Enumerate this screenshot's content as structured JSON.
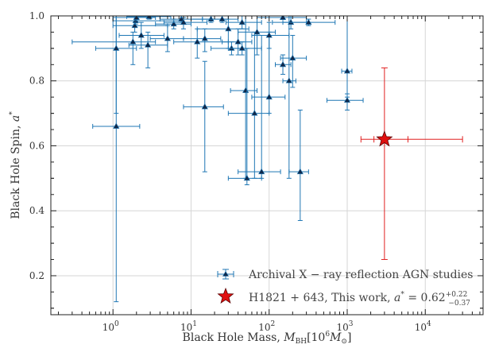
{
  "chart_data": {
    "type": "scatter",
    "xscale": "log",
    "xlim": [
      0.16,
      55000
    ],
    "ylim": [
      0.08,
      1.0
    ],
    "grid": true,
    "xlabel": "Black Hole Mass,  M_BH[10^6 M_⊙]",
    "xlabel_parts": {
      "prefix": "Black Hole Mass,  ",
      "M": "M",
      "sub": "BH",
      "bracket_open": "[10",
      "exp": "6",
      "M2": "M",
      "sub2": "⊙",
      "bracket_close": "]"
    },
    "ylabel": "Black Hole Spin,  a*",
    "ylabel_parts": {
      "prefix": "Black Hole Spin,  ",
      "var": "a",
      "sup": "*"
    },
    "xticks": [
      {
        "value": 1,
        "base": "10",
        "exp": "0"
      },
      {
        "value": 10,
        "base": "10",
        "exp": "1"
      },
      {
        "value": 100,
        "base": "10",
        "exp": "2"
      },
      {
        "value": 1000,
        "base": "10",
        "exp": "3"
      },
      {
        "value": 10000,
        "base": "10",
        "exp": "4"
      }
    ],
    "yticks": [
      "0.2",
      "0.4",
      "0.6",
      "0.8",
      "1.0"
    ],
    "legend": {
      "placement": "bottom-right",
      "entries": [
        {
          "label": "Archival X − ray reflection AGN studies"
        },
        {
          "label_main": "H1821 + 643, This work,  ",
          "var": "a",
          "sup": "*",
          "eq": " = 0.62",
          "up": "+0.22",
          "down": "−0.37"
        }
      ]
    },
    "series": [
      {
        "name": "Archival X-ray reflection AGN studies",
        "color": "#1f77b4",
        "marker_color": "#10284a",
        "points": [
          {
            "x": 1.1,
            "y": 0.66,
            "xlo": 0.55,
            "xhi": 2.2,
            "ylo": 0.12,
            "yhi": 1.0
          },
          {
            "x": 1.1,
            "y": 0.9,
            "xlo": 0.6,
            "xhi": 2.0,
            "ylo": 0.7,
            "yhi": 1.0
          },
          {
            "x": 1.8,
            "y": 0.92,
            "xlo": 0.3,
            "xhi": 3.5,
            "ylo": 0.85,
            "yhi": 0.95
          },
          {
            "x": 1.9,
            "y": 0.97,
            "xlo": 1.0,
            "xhi": 5.0,
            "ylo": 0.95,
            "yhi": 1.0
          },
          {
            "x": 1.95,
            "y": 0.985,
            "xlo": 1.0,
            "xhi": 8.0,
            "ylo": 0.975,
            "yhi": 0.995
          },
          {
            "x": 2.0,
            "y": 0.995,
            "xlo": 1.0,
            "xhi": 3.5,
            "ylo": 0.985,
            "yhi": 1.0
          },
          {
            "x": 2.3,
            "y": 0.94,
            "xlo": 1.2,
            "xhi": 4.5,
            "ylo": 0.9,
            "yhi": 0.98
          },
          {
            "x": 2.8,
            "y": 0.91,
            "xlo": 1.6,
            "xhi": 5.0,
            "ylo": 0.84,
            "yhi": 0.95
          },
          {
            "x": 2.9,
            "y": 0.998,
            "xlo": 1.5,
            "xhi": 5.5,
            "ylo": 0.99,
            "yhi": 1.0
          },
          {
            "x": 5.0,
            "y": 0.93,
            "xlo": 3.0,
            "xhi": 8.0,
            "ylo": 0.89,
            "yhi": 0.97
          },
          {
            "x": 6.0,
            "y": 0.975,
            "xlo": 3.5,
            "xhi": 10.0,
            "ylo": 0.96,
            "yhi": 0.99
          },
          {
            "x": 7.5,
            "y": 0.99,
            "xlo": 4.0,
            "xhi": 14.0,
            "ylo": 0.98,
            "yhi": 1.0
          },
          {
            "x": 8.0,
            "y": 0.98,
            "xlo": 4.5,
            "xhi": 16.0,
            "ylo": 0.96,
            "yhi": 0.995
          },
          {
            "x": 12.0,
            "y": 0.92,
            "xlo": 6.0,
            "xhi": 30.0,
            "ylo": 0.87,
            "yhi": 0.96
          },
          {
            "x": 15.0,
            "y": 0.72,
            "xlo": 8.0,
            "xhi": 26.0,
            "ylo": 0.52,
            "yhi": 0.86
          },
          {
            "x": 15.0,
            "y": 0.93,
            "xlo": 8.0,
            "xhi": 24.0,
            "ylo": 0.89,
            "yhi": 0.96
          },
          {
            "x": 18.0,
            "y": 0.99,
            "xlo": 10.0,
            "xhi": 30.0,
            "ylo": 0.98,
            "yhi": 1.0
          },
          {
            "x": 25.0,
            "y": 0.99,
            "xlo": 14.0,
            "xhi": 40.0,
            "ylo": 0.98,
            "yhi": 1.0
          },
          {
            "x": 30.0,
            "y": 0.96,
            "xlo": 12.0,
            "xhi": 55.0,
            "ylo": 0.9,
            "yhi": 1.0
          },
          {
            "x": 33.0,
            "y": 0.9,
            "xlo": 18.0,
            "xhi": 45.0,
            "ylo": 0.88,
            "yhi": 0.92
          },
          {
            "x": 40.0,
            "y": 0.92,
            "xlo": 25.0,
            "xhi": 60.0,
            "ylo": 0.88,
            "yhi": 0.96
          },
          {
            "x": 45.0,
            "y": 0.9,
            "xlo": 30.0,
            "xhi": 80.0,
            "ylo": 0.88,
            "yhi": 0.92
          },
          {
            "x": 45.0,
            "y": 0.98,
            "xlo": 28.0,
            "xhi": 80.0,
            "ylo": 0.96,
            "yhi": 1.0
          },
          {
            "x": 50.0,
            "y": 0.77,
            "xlo": 32.0,
            "xhi": 70.0,
            "ylo": 0.5,
            "yhi": 1.0
          },
          {
            "x": 52.0,
            "y": 0.5,
            "xlo": 30.0,
            "xhi": 80.0,
            "ylo": 0.48,
            "yhi": 0.9
          },
          {
            "x": 65.0,
            "y": 0.7,
            "xlo": 30.0,
            "xhi": 100.0,
            "ylo": 0.5,
            "yhi": 0.95
          },
          {
            "x": 70.0,
            "y": 0.95,
            "xlo": 40.0,
            "xhi": 120.0,
            "ylo": 0.88,
            "yhi": 1.0
          },
          {
            "x": 80.0,
            "y": 0.52,
            "xlo": 40.0,
            "xhi": 140.0,
            "ylo": 0.5,
            "yhi": 0.94
          },
          {
            "x": 100.0,
            "y": 0.75,
            "xlo": 60.0,
            "xhi": 160.0,
            "ylo": 0.7,
            "yhi": 0.95
          },
          {
            "x": 100.0,
            "y": 0.94,
            "xlo": 60.0,
            "xhi": 180.0,
            "ylo": 0.9,
            "yhi": 0.98
          },
          {
            "x": 150.0,
            "y": 0.85,
            "xlo": 120.0,
            "xhi": 190.0,
            "ylo": 0.82,
            "yhi": 0.88
          },
          {
            "x": 150.0,
            "y": 0.995,
            "xlo": 70.0,
            "xhi": 300.0,
            "ylo": 0.99,
            "yhi": 1.0
          },
          {
            "x": 180.0,
            "y": 0.8,
            "xlo": 150.0,
            "xhi": 220.0,
            "ylo": 0.5,
            "yhi": 1.0
          },
          {
            "x": 190.0,
            "y": 0.98,
            "xlo": 110.0,
            "xhi": 300.0,
            "ylo": 0.96,
            "yhi": 1.0
          },
          {
            "x": 200.0,
            "y": 0.87,
            "xlo": 140.0,
            "xhi": 300.0,
            "ylo": 0.78,
            "yhi": 0.94
          },
          {
            "x": 250.0,
            "y": 0.52,
            "xlo": 180.0,
            "xhi": 320.0,
            "ylo": 0.37,
            "yhi": 0.71
          },
          {
            "x": 320.0,
            "y": 0.98,
            "xlo": 150.0,
            "xhi": 700.0,
            "ylo": 0.97,
            "yhi": 0.99
          },
          {
            "x": 1000.0,
            "y": 0.74,
            "xlo": 550.0,
            "xhi": 1600.0,
            "ylo": 0.71,
            "yhi": 0.76
          },
          {
            "x": 1000.0,
            "y": 0.83,
            "xlo": 850.0,
            "xhi": 1150.0,
            "ylo": 0.75,
            "yhi": 1.0
          }
        ]
      },
      {
        "name": "H1821+643, This work",
        "color": "#e02020",
        "marker": "star",
        "points": [
          {
            "x": 3000.0,
            "y": 0.62,
            "xlo": 1500.0,
            "xhi": 30000.0,
            "xmid_lo": 2200.0,
            "xmid_hi": 6000.0,
            "ylo": 0.25,
            "yhi": 0.84
          }
        ]
      }
    ]
  }
}
